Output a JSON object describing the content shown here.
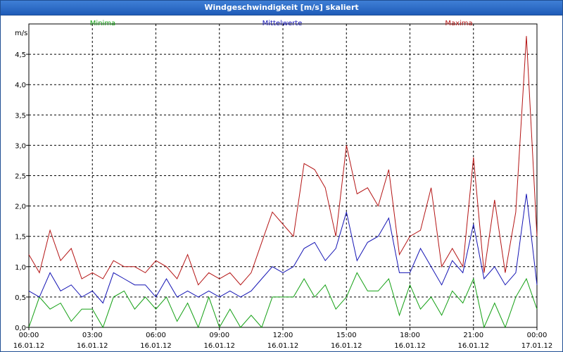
{
  "window": {
    "title": "Windgeschwindigkeit [m/s] skaliert"
  },
  "chart_data": {
    "type": "line",
    "title": "Windgeschwindigkeit [m/s] skaliert",
    "ylabel": "m/s",
    "ylim": [
      0,
      5
    ],
    "yticks": [
      0,
      0.5,
      1.0,
      1.5,
      2.0,
      2.5,
      3.0,
      3.5,
      4.0,
      4.5
    ],
    "ytick_labels": [
      "0,0",
      "0,5",
      "1,0",
      "1,5",
      "2,0",
      "2,5",
      "3,0",
      "3,5",
      "4,0",
      "4,5"
    ],
    "xlim": [
      0,
      24
    ],
    "xticks": [
      {
        "time": "00:00",
        "date": "16.01.12"
      },
      {
        "time": "03:00",
        "date": "16.01.12"
      },
      {
        "time": "06:00",
        "date": "16.01.12"
      },
      {
        "time": "09:00",
        "date": "16.01.12"
      },
      {
        "time": "12:00",
        "date": "16.01.12"
      },
      {
        "time": "15:00",
        "date": "16.01.12"
      },
      {
        "time": "18:00",
        "date": "16.01.12"
      },
      {
        "time": "21:00",
        "date": "16.01.12"
      },
      {
        "time": "00:00",
        "date": "17.01.12"
      }
    ],
    "grid": true,
    "legend_placement": "top",
    "series": [
      {
        "name": "Minima",
        "color": "#14a014",
        "x": [
          0,
          0.5,
          1,
          1.5,
          2,
          2.5,
          3,
          3.5,
          4,
          4.5,
          5,
          5.5,
          6,
          6.5,
          7,
          7.5,
          8,
          8.5,
          9,
          9.5,
          10,
          10.5,
          11,
          11.5,
          12,
          12.5,
          13,
          13.5,
          14,
          14.5,
          15,
          15.5,
          16,
          16.5,
          17,
          17.5,
          18,
          18.5,
          19,
          19.5,
          20,
          20.5,
          21,
          21.5,
          22,
          22.5,
          23,
          23.5,
          24
        ],
        "values": [
          0,
          0.5,
          0.3,
          0.4,
          0.1,
          0.3,
          0.3,
          0,
          0.5,
          0.6,
          0.3,
          0.5,
          0.3,
          0.5,
          0.1,
          0.4,
          0,
          0.5,
          0,
          0.3,
          0,
          0.2,
          0,
          0.5,
          0.5,
          0.5,
          0.8,
          0.5,
          0.7,
          0.3,
          0.5,
          0.9,
          0.6,
          0.6,
          0.8,
          0.2,
          0.7,
          0.3,
          0.5,
          0.2,
          0.6,
          0.4,
          0.8,
          0,
          0.4,
          0,
          0.5,
          0.8,
          0.3
        ]
      },
      {
        "name": "Mittelwerte",
        "color": "#1414b4",
        "x": [
          0,
          0.5,
          1,
          1.5,
          2,
          2.5,
          3,
          3.5,
          4,
          4.5,
          5,
          5.5,
          6,
          6.5,
          7,
          7.5,
          8,
          8.5,
          9,
          9.5,
          10,
          10.5,
          11,
          11.5,
          12,
          12.5,
          13,
          13.5,
          14,
          14.5,
          15,
          15.5,
          16,
          16.5,
          17,
          17.5,
          18,
          18.5,
          19,
          19.5,
          20,
          20.5,
          21,
          21.5,
          22,
          22.5,
          23,
          23.5,
          24
        ],
        "values": [
          0.6,
          0.5,
          0.9,
          0.6,
          0.7,
          0.5,
          0.6,
          0.4,
          0.9,
          0.8,
          0.7,
          0.7,
          0.5,
          0.8,
          0.5,
          0.6,
          0.5,
          0.6,
          0.5,
          0.6,
          0.5,
          0.6,
          0.8,
          1.0,
          0.9,
          1.0,
          1.3,
          1.4,
          1.1,
          1.3,
          1.9,
          1.1,
          1.4,
          1.5,
          1.8,
          0.9,
          0.9,
          1.3,
          1.0,
          0.7,
          1.1,
          0.9,
          1.7,
          0.8,
          1.0,
          0.7,
          0.9,
          2.2,
          0.7
        ]
      },
      {
        "name": "Maxima",
        "color": "#b41414",
        "x": [
          0,
          0.5,
          1,
          1.5,
          2,
          2.5,
          3,
          3.5,
          4,
          4.5,
          5,
          5.5,
          6,
          6.5,
          7,
          7.5,
          8,
          8.5,
          9,
          9.5,
          10,
          10.5,
          11,
          11.5,
          12,
          12.5,
          13,
          13.5,
          14,
          14.5,
          15,
          15.5,
          16,
          16.5,
          17,
          17.5,
          18,
          18.5,
          19,
          19.5,
          20,
          20.5,
          21,
          21.5,
          22,
          22.5,
          23,
          23.5,
          24
        ],
        "values": [
          1.2,
          0.9,
          1.6,
          1.1,
          1.3,
          0.8,
          0.9,
          0.8,
          1.1,
          1.0,
          1.0,
          0.9,
          1.1,
          1.0,
          0.8,
          1.2,
          0.7,
          0.9,
          0.8,
          0.9,
          0.7,
          0.9,
          1.4,
          1.9,
          1.7,
          1.5,
          2.7,
          2.6,
          2.3,
          1.5,
          3.0,
          2.2,
          2.3,
          2.0,
          2.6,
          1.2,
          1.5,
          1.6,
          2.3,
          1.0,
          1.3,
          1.0,
          2.8,
          0.9,
          2.1,
          0.9,
          1.9,
          4.8,
          1.5
        ]
      }
    ]
  }
}
